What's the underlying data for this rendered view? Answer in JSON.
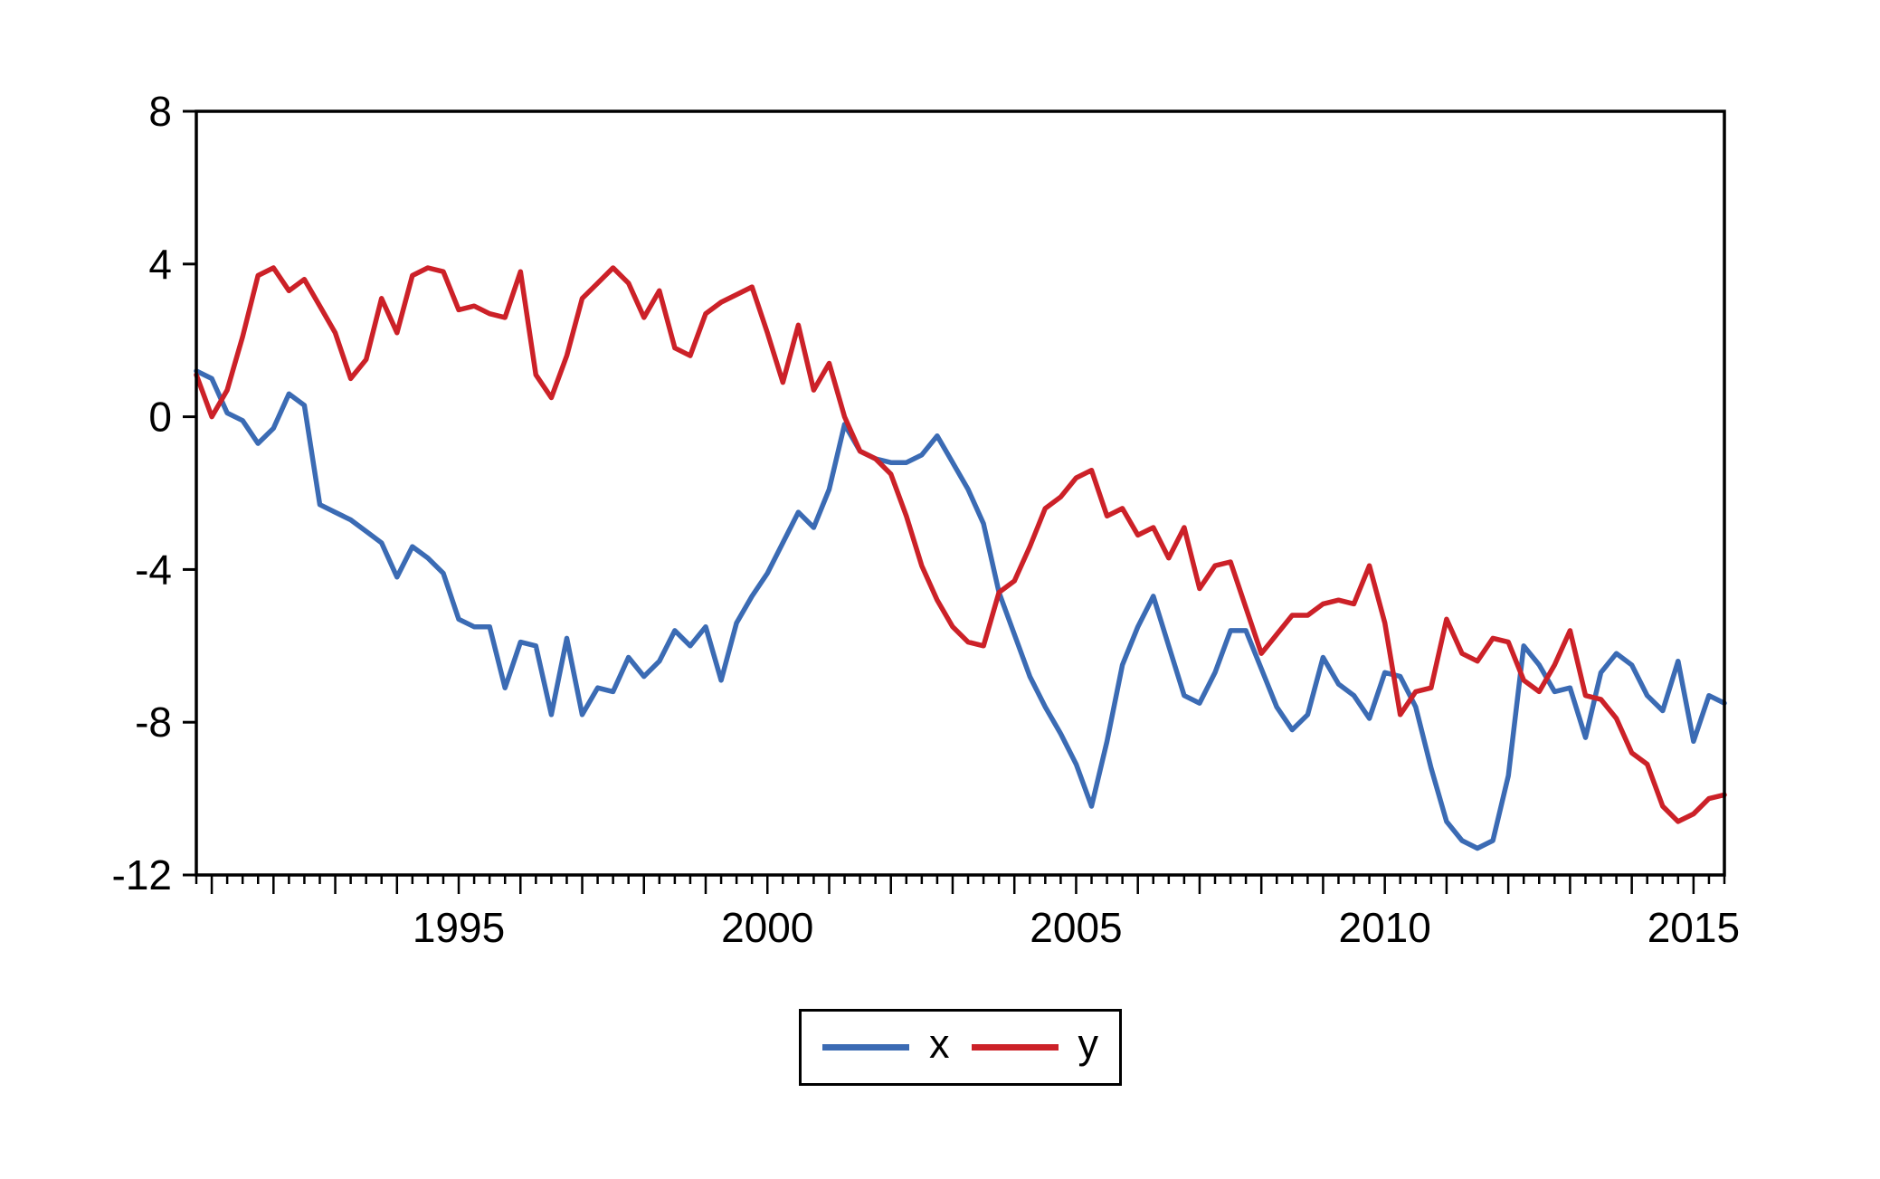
{
  "page": {
    "background_color": "#ffffff",
    "text_color": "#000000"
  },
  "chart_data": {
    "type": "line",
    "title": "",
    "xlabel": "",
    "ylabel": "",
    "grid": "off",
    "legend_position": "bottom-center",
    "frame": "full-box",
    "x_axis": {
      "start": 1990.75,
      "step": 0.25,
      "count": 100,
      "range": [
        1990.75,
        2015.5
      ],
      "frequency": "quarterly",
      "minor_tick_interval": 0.25,
      "major_tick_interval": 1,
      "tick_values": [
        1995,
        2000,
        2005,
        2010,
        2015
      ],
      "tick_labels": [
        "1995",
        "2000",
        "2005",
        "2010",
        "2015"
      ]
    },
    "y_axis": {
      "range": [
        -12,
        8
      ],
      "tick_values": [
        8,
        4,
        0,
        -4,
        -8,
        -12
      ],
      "tick_labels": [
        "8",
        "4",
        "0",
        "-4",
        "-8",
        "-12"
      ]
    },
    "series": [
      {
        "name": "x",
        "color": "#3B6BB4",
        "values": [
          1.2,
          1.0,
          0.1,
          -0.1,
          -0.7,
          -0.3,
          0.6,
          0.3,
          -2.3,
          -2.5,
          -2.7,
          -3.0,
          -3.3,
          -4.2,
          -3.4,
          -3.7,
          -4.1,
          -5.3,
          -5.5,
          -5.5,
          -7.1,
          -5.9,
          -6.0,
          -7.8,
          -5.8,
          -7.8,
          -7.1,
          -7.2,
          -6.3,
          -6.8,
          -6.4,
          -5.6,
          -6.0,
          -5.5,
          -6.9,
          -5.4,
          -4.7,
          -4.1,
          -3.3,
          -2.5,
          -2.9,
          -1.9,
          -0.2,
          -0.9,
          -1.1,
          -1.2,
          -1.2,
          -1.0,
          -0.5,
          -1.2,
          -1.9,
          -2.8,
          -4.6,
          -5.7,
          -6.8,
          -7.6,
          -8.3,
          -9.1,
          -10.2,
          -8.5,
          -6.5,
          -5.5,
          -4.7,
          -6.0,
          -7.3,
          -7.5,
          -6.7,
          -5.6,
          -5.6,
          -6.6,
          -7.6,
          -8.2,
          -7.8,
          -6.3,
          -7.0,
          -7.3,
          -7.9,
          -6.7,
          -6.8,
          -7.6,
          -9.2,
          -10.6,
          -11.1,
          -11.3,
          -11.1,
          -9.4,
          -6.0,
          -6.5,
          -7.2,
          -7.1,
          -8.4,
          -6.7,
          -6.2,
          -6.5,
          -7.3,
          -7.7,
          -6.4,
          -8.5,
          -7.3,
          -7.5
        ]
      },
      {
        "name": "y",
        "color": "#CC2128",
        "values": [
          1.1,
          0.0,
          0.7,
          2.1,
          3.7,
          3.9,
          3.3,
          3.6,
          2.9,
          2.2,
          1.0,
          1.5,
          3.1,
          2.2,
          3.7,
          3.9,
          3.8,
          2.8,
          2.9,
          2.7,
          2.6,
          3.8,
          1.1,
          0.5,
          1.6,
          3.1,
          3.5,
          3.9,
          3.5,
          2.6,
          3.3,
          1.8,
          1.6,
          2.7,
          3.0,
          3.2,
          3.4,
          2.2,
          0.9,
          2.4,
          0.7,
          1.4,
          0.0,
          -0.9,
          -1.1,
          -1.5,
          -2.6,
          -3.9,
          -4.8,
          -5.5,
          -5.9,
          -6.0,
          -4.6,
          -4.3,
          -3.4,
          -2.4,
          -2.1,
          -1.6,
          -1.4,
          -2.6,
          -2.4,
          -3.1,
          -2.9,
          -3.7,
          -2.9,
          -4.5,
          -3.9,
          -3.8,
          -5.0,
          -6.2,
          -5.7,
          -5.2,
          -5.2,
          -4.9,
          -4.8,
          -4.9,
          -3.9,
          -5.4,
          -7.8,
          -7.2,
          -7.1,
          -5.3,
          -6.2,
          -6.4,
          -5.8,
          -5.9,
          -6.9,
          -7.2,
          -6.5,
          -5.6,
          -7.3,
          -7.4,
          -7.9,
          -8.8,
          -9.1,
          -10.2,
          -10.6,
          -10.4,
          -10.0,
          -9.9
        ]
      }
    ]
  },
  "legend": {
    "entries": [
      {
        "label": "x",
        "color": "#3B6BB4"
      },
      {
        "label": "y",
        "color": "#CC2128"
      }
    ]
  }
}
